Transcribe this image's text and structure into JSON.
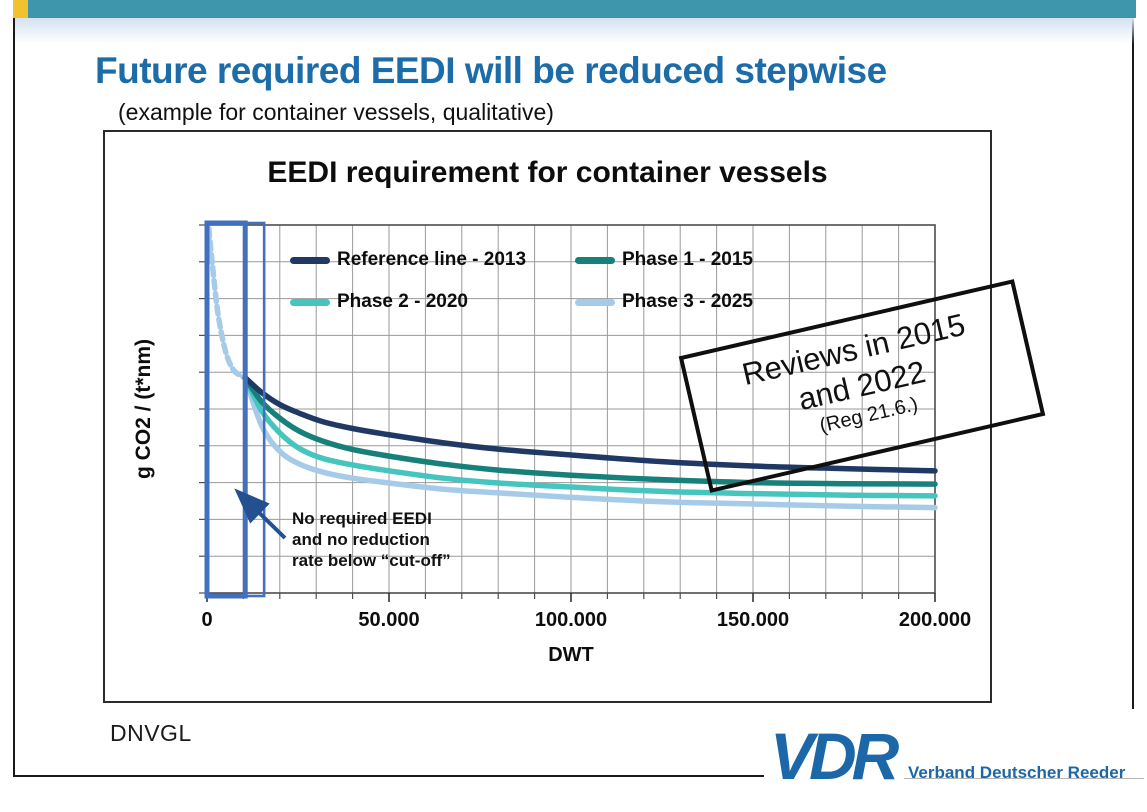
{
  "slide": {
    "title": "Future required EEDI will be reduced stepwise",
    "subtitle": "(example for container vessels, qualitative)",
    "accent_bar_color": "#3D96AB",
    "accent_square_color": "#F2C22E",
    "title_color": "#1B6CA8",
    "source": "DNVGL"
  },
  "chart_data": {
    "type": "line",
    "title": "EEDI requirement for container vessels",
    "xlabel": "DWT",
    "ylabel": "g CO2 / (t*nm)",
    "xlim": [
      0,
      200000
    ],
    "ylim": [
      0,
      10
    ],
    "x_ticks": [
      "0",
      "50.000",
      "100.000",
      "150.000",
      "200.000"
    ],
    "x_tick_values": [
      0,
      50000,
      100000,
      150000,
      200000
    ],
    "y_ticks_shown": false,
    "grid": true,
    "note": "qualitative illustration, relative EEDI units (no numeric y labels shown)",
    "legend_position": "top-inside two columns",
    "series": [
      {
        "name": "Reference line - 2013",
        "color": "#1F3864",
        "x": [
          10500,
          15000,
          20000,
          25500,
          32000,
          40000,
          50000,
          65000,
          80000,
          100000,
          125000,
          150000,
          175000,
          200000
        ],
        "y": [
          5.85,
          5.45,
          5.12,
          4.88,
          4.65,
          4.47,
          4.3,
          4.08,
          3.91,
          3.75,
          3.57,
          3.45,
          3.38,
          3.32
        ]
      },
      {
        "name": "Phase 1 - 2015",
        "color": "#17807B",
        "x": [
          10500,
          15000,
          20000,
          25500,
          32000,
          40000,
          50000,
          65000,
          80000,
          100000,
          125000,
          150000,
          175000,
          200000
        ],
        "y": [
          5.85,
          5.2,
          4.75,
          4.39,
          4.12,
          3.9,
          3.72,
          3.5,
          3.34,
          3.2,
          3.08,
          3.0,
          2.97,
          2.96
        ]
      },
      {
        "name": "Phase 2 - 2020",
        "color": "#46C5BF",
        "x": [
          10500,
          15000,
          20000,
          25500,
          32000,
          40000,
          50000,
          65000,
          80000,
          100000,
          125000,
          150000,
          175000,
          200000
        ],
        "y": [
          5.85,
          4.95,
          4.35,
          3.92,
          3.65,
          3.48,
          3.32,
          3.12,
          2.99,
          2.88,
          2.76,
          2.7,
          2.66,
          2.64
        ]
      },
      {
        "name": "Phase 3 - 2025",
        "color": "#A6CBE8",
        "x": [
          10500,
          15000,
          20000,
          25500,
          32000,
          40000,
          50000,
          65000,
          80000,
          100000,
          125000,
          150000,
          175000,
          200000
        ],
        "y": [
          5.85,
          4.55,
          3.85,
          3.5,
          3.28,
          3.12,
          2.99,
          2.82,
          2.72,
          2.6,
          2.48,
          2.42,
          2.36,
          2.32
        ]
      }
    ],
    "cutoff_line": {
      "name": "common steep line below cut-off",
      "color": "#A6CBE8",
      "dashed": true,
      "x": [
        500,
        1500,
        3000,
        5000,
        7000,
        9000,
        10500
      ],
      "y": [
        9.9,
        8.9,
        7.6,
        6.6,
        6.1,
        5.92,
        5.85
      ]
    },
    "cutoff_boxes": {
      "color": "#4370BE",
      "x_ranges_dwt": [
        [
          0,
          10500
        ],
        [
          0,
          15700
        ]
      ]
    },
    "annotations": {
      "cutoff_note": {
        "lines": [
          "No required EEDI",
          "and no reduction",
          "rate below “cut-off”"
        ]
      },
      "review_note": {
        "lines": [
          "Reviews in 2015",
          "and 2022",
          "(Reg 21.6.)"
        ]
      }
    }
  },
  "logo": {
    "acronym": "VDR",
    "name": "Verband Deutscher Reeder",
    "color": "#1B67A8"
  }
}
